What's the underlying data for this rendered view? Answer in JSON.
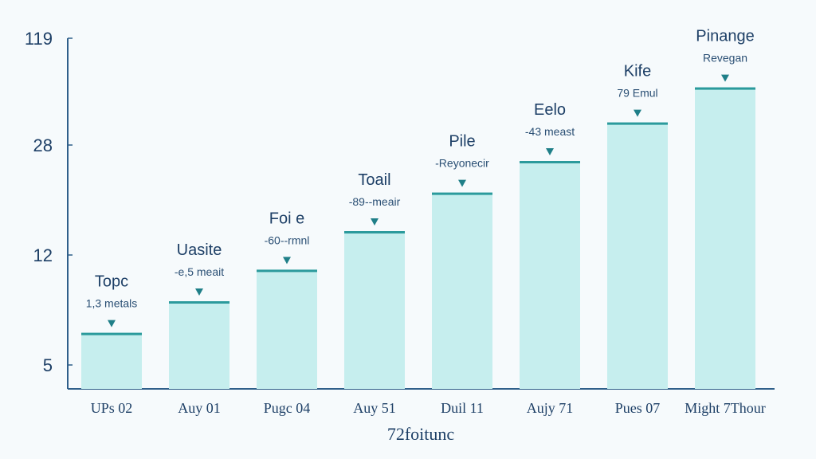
{
  "chart_data": {
    "type": "bar",
    "title": "",
    "xlabel": "72foitunc",
    "ylabel": "",
    "y_tick_labels": [
      "119",
      "28",
      "12",
      "5"
    ],
    "categories": [
      "UPs 02",
      "Auy 01",
      "Pugc 04",
      "Auy 51",
      "Duil 11",
      "Aujy 71",
      "Pues 07",
      "Might 7Thour"
    ],
    "values": [
      1.6,
      2.5,
      3.4,
      4.5,
      5.6,
      6.5,
      7.6,
      8.6
    ],
    "ylim": [
      0,
      10
    ],
    "annotations": [
      {
        "title": "Topc",
        "sub": "1,3 metals"
      },
      {
        "title": "Uasite",
        "sub": "-e,5 meait"
      },
      {
        "title": "Foi e",
        "sub": "-60--rmnl"
      },
      {
        "title": "Toail",
        "sub": "-89--meair"
      },
      {
        "title": "Pile",
        "sub": "-Reyonecir"
      },
      {
        "title": "Eelo",
        "sub": "-43 meast"
      },
      {
        "title": "Kife",
        "sub": "79 Emul"
      },
      {
        "title": "Pinange",
        "sub": "Revegan"
      }
    ],
    "grid": false,
    "legend": "none"
  },
  "colors": {
    "bar_fill": "#c6eeee",
    "bar_top": "#2b9a9c",
    "axis": "#2f5f8a",
    "marker": "#1f7f88",
    "text": "#1d3f66"
  }
}
